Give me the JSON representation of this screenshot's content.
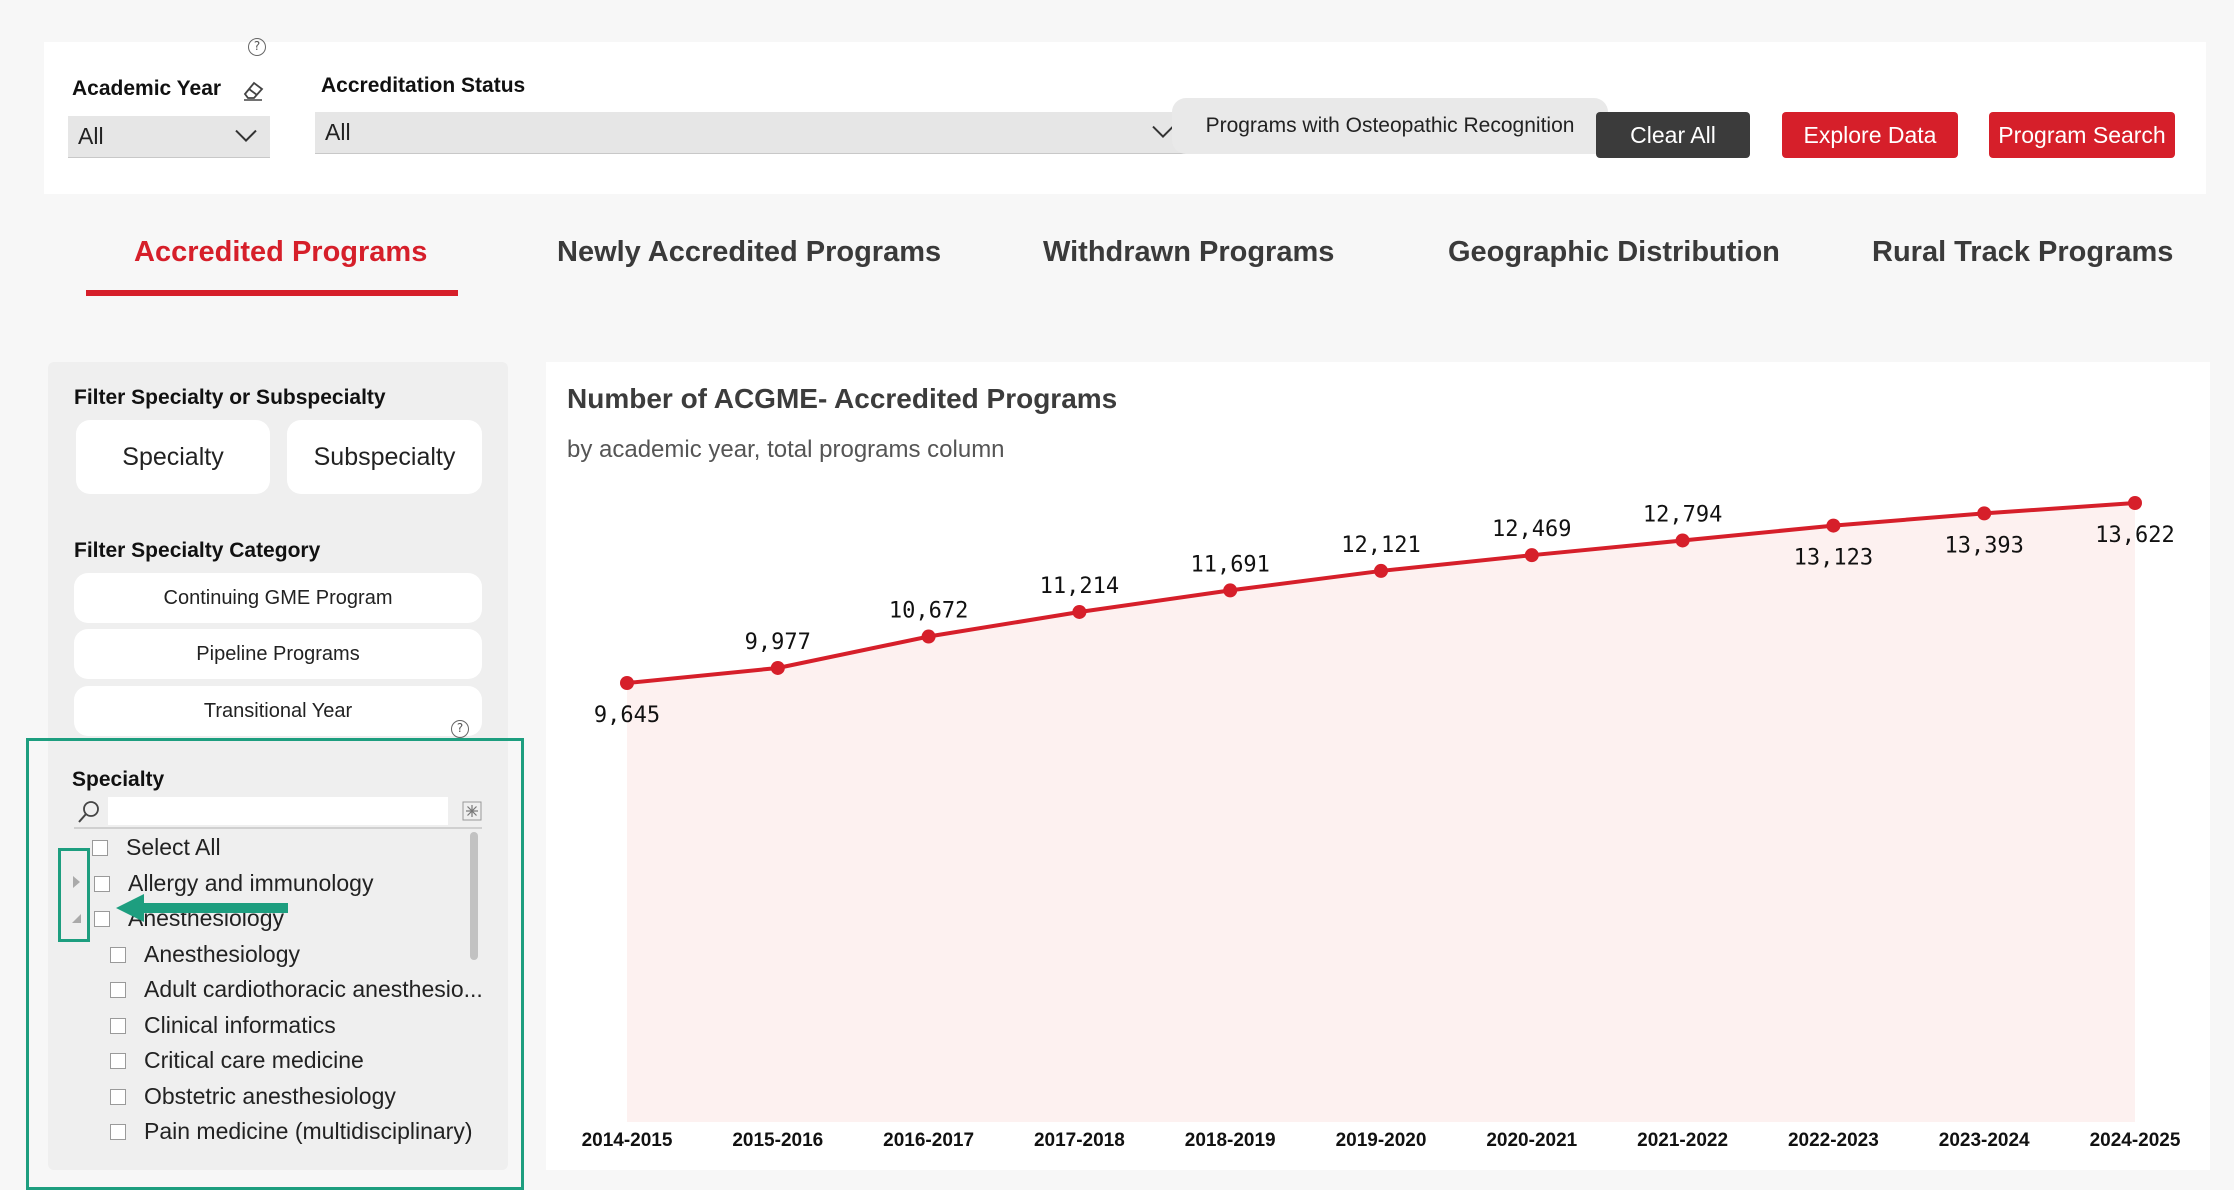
{
  "filters": {
    "academic_year": {
      "label": "Academic Year",
      "value": "All"
    },
    "accreditation_status": {
      "label": "Accreditation Status",
      "value": "All"
    },
    "osteopathic_button": "Programs with Osteopathic Recognition",
    "help_glyph": "?"
  },
  "actions": {
    "clear_all": "Clear All",
    "explore_data": "Explore Data",
    "program_search": "Program Search"
  },
  "tabs": [
    {
      "label": "Accredited Programs",
      "active": true
    },
    {
      "label": "Newly Accredited Programs"
    },
    {
      "label": "Withdrawn Programs"
    },
    {
      "label": "Geographic Distribution"
    },
    {
      "label": "Rural Track Programs"
    }
  ],
  "left_panel": {
    "filter_type_label": "Filter Specialty or Subspecialty",
    "type_buttons": [
      "Specialty",
      "Subspecialty"
    ],
    "category_label": "Filter Specialty Category",
    "categories": [
      "Continuing GME Program",
      "Pipeline Programs",
      "Transitional Year"
    ],
    "specialty_slicer": {
      "title": "Specialty",
      "items": [
        "Select All",
        "Allergy and immunology",
        "Anesthesiology",
        "Anesthesiology",
        "Adult cardiothoracic anesthesio...",
        "Clinical informatics",
        "Critical care medicine",
        "Obstetric anesthesiology",
        "Pain medicine (multidisciplinary)"
      ]
    }
  },
  "chart_data": {
    "type": "area",
    "title": "Number of ACGME- Accredited Programs",
    "subtitle": "by academic year, total programs column",
    "categories": [
      "2014-2015",
      "2015-2016",
      "2016-2017",
      "2017-2018",
      "2018-2019",
      "2019-2020",
      "2020-2021",
      "2021-2022",
      "2022-2023",
      "2023-2024",
      "2024-2025"
    ],
    "values": [
      9645,
      9977,
      10672,
      11214,
      11691,
      12121,
      12469,
      12794,
      13123,
      13393,
      13622
    ],
    "labels": [
      "9,645",
      "9,977",
      "10,672",
      "11,214",
      "11,691",
      "12,121",
      "12,469",
      "12,794",
      "13,123",
      "13,393",
      "13,622"
    ],
    "line_color": "#d61f2a",
    "fill_color": "#fdf1f0",
    "grid": false
  }
}
